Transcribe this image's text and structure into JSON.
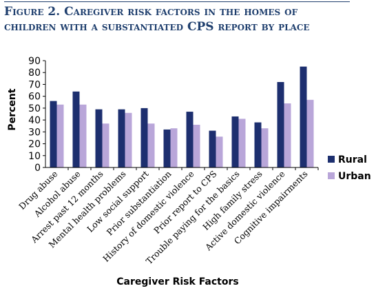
{
  "figure": {
    "title_line1": "Figure 2. Caregiver risk factors in the homes of",
    "title_line2": "children with a substantiated CPS report by place"
  },
  "colors": {
    "rural": "#1d2f6f",
    "urban": "#b9a6d9",
    "title": "#1f3f6e"
  },
  "chart_data": {
    "type": "bar",
    "title": "Figure 2. Caregiver risk factors in the homes of children with a substantiated CPS report by place",
    "xlabel": "Caregiver Risk Factors",
    "ylabel": "Percent",
    "ylim": [
      0,
      90
    ],
    "yticks": [
      0,
      10,
      20,
      30,
      40,
      50,
      60,
      70,
      80,
      90
    ],
    "grid": false,
    "legend": "right",
    "categories": [
      "Drug abuse",
      "Alcohol abuse",
      "Arrest past 12 months",
      "Mental health problems",
      "Low social support",
      "Prior substantiation",
      "History of domestic violence",
      "Prior report to CPS",
      "Trouble paying for the basics",
      "High family stress",
      "Active domestic violence",
      "Cognitive impairments"
    ],
    "series": [
      {
        "name": "Rural",
        "values": [
          56,
          64,
          49,
          49,
          50,
          32,
          47,
          31,
          43,
          38,
          72,
          85
        ]
      },
      {
        "name": "Urban",
        "values": [
          53,
          53,
          37,
          46,
          37,
          33,
          36,
          26,
          41,
          33,
          54,
          57
        ]
      }
    ]
  }
}
